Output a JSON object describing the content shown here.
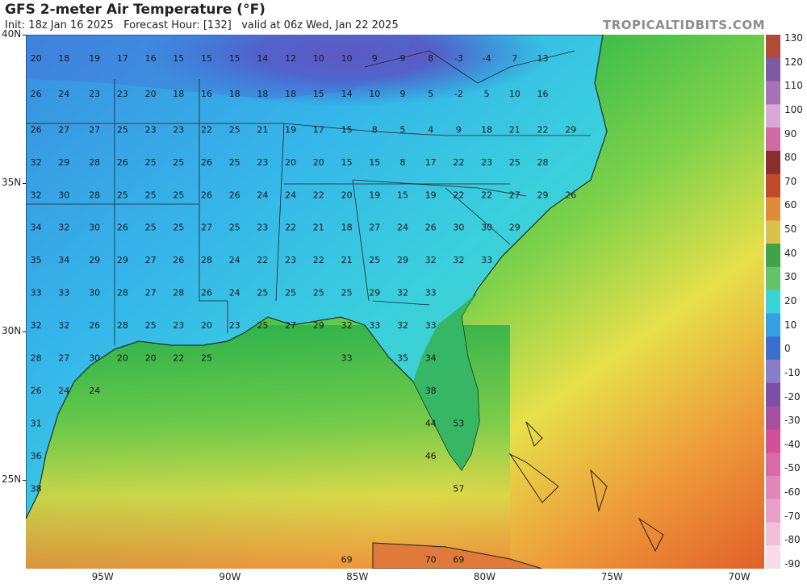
{
  "header": {
    "title": "GFS 2-meter Air Temperature (°F)",
    "subtitle": "Init: 18z Jan 16 2025   Forecast Hour: [132]   valid at 06z Wed, Jan 22 2025",
    "brand": "TROPICALTIDBITS.COM"
  },
  "axes": {
    "lat_labels": [
      {
        "text": "40N",
        "lat": 40
      },
      {
        "text": "35N",
        "lat": 35
      },
      {
        "text": "30N",
        "lat": 30
      },
      {
        "text": "25N",
        "lat": 25
      }
    ],
    "lon_labels": [
      {
        "text": "95W",
        "lon": -95
      },
      {
        "text": "90W",
        "lon": -90
      },
      {
        "text": "85W",
        "lon": -85
      },
      {
        "text": "80W",
        "lon": -80
      },
      {
        "text": "75W",
        "lon": -75
      },
      {
        "text": "70W",
        "lon": -70
      }
    ],
    "extent": {
      "lon_min": -98.0,
      "lon_max": -69.0,
      "lat_min": 22.0,
      "lat_max": 40.0
    }
  },
  "colorbar": {
    "labels": [
      "130",
      "120",
      "110",
      "100",
      "90",
      "80",
      "70",
      "60",
      "50",
      "40",
      "30",
      "20",
      "10",
      "0",
      "-10",
      "-20",
      "-30",
      "-40",
      "-50",
      "-60",
      "-70",
      "-80",
      "-90"
    ],
    "colors": [
      "#b04a3a",
      "#7e5aa3",
      "#a673b8",
      "#d7a8d8",
      "#d16aa2",
      "#8a2d2d",
      "#c04a2a",
      "#e08a3a",
      "#d9c24a",
      "#3fa34a",
      "#65c46a",
      "#3ad3d6",
      "#33a0e6",
      "#3a6fd0",
      "#8a7dc8",
      "#7a4fa8",
      "#a84fa0",
      "#d34f9a",
      "#d86aa8",
      "#e088b8",
      "#e8a0c8",
      "#f0bfd8",
      "#f6dde9"
    ]
  },
  "temperatures": [
    {
      "v": "20",
      "lon": -97.6,
      "lat": 39.1
    },
    {
      "v": "18",
      "lon": -96.5,
      "lat": 39.1
    },
    {
      "v": "19",
      "lon": -95.3,
      "lat": 39.1
    },
    {
      "v": "17",
      "lon": -94.2,
      "lat": 39.1
    },
    {
      "v": "16",
      "lon": -93.1,
      "lat": 39.1
    },
    {
      "v": "15",
      "lon": -92.0,
      "lat": 39.1
    },
    {
      "v": "15",
      "lon": -90.9,
      "lat": 39.1
    },
    {
      "v": "15",
      "lon": -89.8,
      "lat": 39.1
    },
    {
      "v": "14",
      "lon": -88.7,
      "lat": 39.1
    },
    {
      "v": "12",
      "lon": -87.6,
      "lat": 39.1
    },
    {
      "v": "10",
      "lon": -86.5,
      "lat": 39.1
    },
    {
      "v": "10",
      "lon": -85.4,
      "lat": 39.1
    },
    {
      "v": "9",
      "lon": -84.3,
      "lat": 39.1
    },
    {
      "v": "9",
      "lon": -83.2,
      "lat": 39.1
    },
    {
      "v": "8",
      "lon": -82.1,
      "lat": 39.1
    },
    {
      "v": "-3",
      "lon": -81.0,
      "lat": 39.1
    },
    {
      "v": "-4",
      "lon": -79.9,
      "lat": 39.1
    },
    {
      "v": "7",
      "lon": -78.8,
      "lat": 39.1
    },
    {
      "v": "13",
      "lon": -77.7,
      "lat": 39.1
    },
    {
      "v": "26",
      "lon": -97.6,
      "lat": 37.9
    },
    {
      "v": "24",
      "lon": -96.5,
      "lat": 37.9
    },
    {
      "v": "23",
      "lon": -95.3,
      "lat": 37.9
    },
    {
      "v": "23",
      "lon": -94.2,
      "lat": 37.9
    },
    {
      "v": "20",
      "lon": -93.1,
      "lat": 37.9
    },
    {
      "v": "18",
      "lon": -92.0,
      "lat": 37.9
    },
    {
      "v": "16",
      "lon": -90.9,
      "lat": 37.9
    },
    {
      "v": "18",
      "lon": -89.8,
      "lat": 37.9
    },
    {
      "v": "18",
      "lon": -88.7,
      "lat": 37.9
    },
    {
      "v": "18",
      "lon": -87.6,
      "lat": 37.9
    },
    {
      "v": "15",
      "lon": -86.5,
      "lat": 37.9
    },
    {
      "v": "14",
      "lon": -85.4,
      "lat": 37.9
    },
    {
      "v": "10",
      "lon": -84.3,
      "lat": 37.9
    },
    {
      "v": "9",
      "lon": -83.2,
      "lat": 37.9
    },
    {
      "v": "5",
      "lon": -82.1,
      "lat": 37.9
    },
    {
      "v": "-2",
      "lon": -81.0,
      "lat": 37.9
    },
    {
      "v": "5",
      "lon": -79.9,
      "lat": 37.9
    },
    {
      "v": "10",
      "lon": -78.8,
      "lat": 37.9
    },
    {
      "v": "16",
      "lon": -77.7,
      "lat": 37.9
    },
    {
      "v": "26",
      "lon": -97.6,
      "lat": 36.7
    },
    {
      "v": "27",
      "lon": -96.5,
      "lat": 36.7
    },
    {
      "v": "27",
      "lon": -95.3,
      "lat": 36.7
    },
    {
      "v": "25",
      "lon": -94.2,
      "lat": 36.7
    },
    {
      "v": "23",
      "lon": -93.1,
      "lat": 36.7
    },
    {
      "v": "23",
      "lon": -92.0,
      "lat": 36.7
    },
    {
      "v": "22",
      "lon": -90.9,
      "lat": 36.7
    },
    {
      "v": "25",
      "lon": -89.8,
      "lat": 36.7
    },
    {
      "v": "21",
      "lon": -88.7,
      "lat": 36.7
    },
    {
      "v": "19",
      "lon": -87.6,
      "lat": 36.7
    },
    {
      "v": "17",
      "lon": -86.5,
      "lat": 36.7
    },
    {
      "v": "15",
      "lon": -85.4,
      "lat": 36.7
    },
    {
      "v": "8",
      "lon": -84.3,
      "lat": 36.7
    },
    {
      "v": "5",
      "lon": -83.2,
      "lat": 36.7
    },
    {
      "v": "4",
      "lon": -82.1,
      "lat": 36.7
    },
    {
      "v": "9",
      "lon": -81.0,
      "lat": 36.7
    },
    {
      "v": "18",
      "lon": -79.9,
      "lat": 36.7
    },
    {
      "v": "21",
      "lon": -78.8,
      "lat": 36.7
    },
    {
      "v": "22",
      "lon": -77.7,
      "lat": 36.7
    },
    {
      "v": "29",
      "lon": -76.6,
      "lat": 36.7
    },
    {
      "v": "32",
      "lon": -97.6,
      "lat": 35.6
    },
    {
      "v": "29",
      "lon": -96.5,
      "lat": 35.6
    },
    {
      "v": "28",
      "lon": -95.3,
      "lat": 35.6
    },
    {
      "v": "26",
      "lon": -94.2,
      "lat": 35.6
    },
    {
      "v": "25",
      "lon": -93.1,
      "lat": 35.6
    },
    {
      "v": "25",
      "lon": -92.0,
      "lat": 35.6
    },
    {
      "v": "26",
      "lon": -90.9,
      "lat": 35.6
    },
    {
      "v": "25",
      "lon": -89.8,
      "lat": 35.6
    },
    {
      "v": "23",
      "lon": -88.7,
      "lat": 35.6
    },
    {
      "v": "20",
      "lon": -87.6,
      "lat": 35.6
    },
    {
      "v": "20",
      "lon": -86.5,
      "lat": 35.6
    },
    {
      "v": "15",
      "lon": -85.4,
      "lat": 35.6
    },
    {
      "v": "15",
      "lon": -84.3,
      "lat": 35.6
    },
    {
      "v": "8",
      "lon": -83.2,
      "lat": 35.6
    },
    {
      "v": "17",
      "lon": -82.1,
      "lat": 35.6
    },
    {
      "v": "22",
      "lon": -81.0,
      "lat": 35.6
    },
    {
      "v": "23",
      "lon": -79.9,
      "lat": 35.6
    },
    {
      "v": "25",
      "lon": -78.8,
      "lat": 35.6
    },
    {
      "v": "28",
      "lon": -77.7,
      "lat": 35.6
    },
    {
      "v": "32",
      "lon": -97.6,
      "lat": 34.5
    },
    {
      "v": "30",
      "lon": -96.5,
      "lat": 34.5
    },
    {
      "v": "28",
      "lon": -95.3,
      "lat": 34.5
    },
    {
      "v": "25",
      "lon": -94.2,
      "lat": 34.5
    },
    {
      "v": "25",
      "lon": -93.1,
      "lat": 34.5
    },
    {
      "v": "25",
      "lon": -92.0,
      "lat": 34.5
    },
    {
      "v": "26",
      "lon": -90.9,
      "lat": 34.5
    },
    {
      "v": "26",
      "lon": -89.8,
      "lat": 34.5
    },
    {
      "v": "24",
      "lon": -88.7,
      "lat": 34.5
    },
    {
      "v": "24",
      "lon": -87.6,
      "lat": 34.5
    },
    {
      "v": "22",
      "lon": -86.5,
      "lat": 34.5
    },
    {
      "v": "20",
      "lon": -85.4,
      "lat": 34.5
    },
    {
      "v": "19",
      "lon": -84.3,
      "lat": 34.5
    },
    {
      "v": "15",
      "lon": -83.2,
      "lat": 34.5
    },
    {
      "v": "19",
      "lon": -82.1,
      "lat": 34.5
    },
    {
      "v": "22",
      "lon": -81.0,
      "lat": 34.5
    },
    {
      "v": "22",
      "lon": -79.9,
      "lat": 34.5
    },
    {
      "v": "27",
      "lon": -78.8,
      "lat": 34.5
    },
    {
      "v": "29",
      "lon": -77.7,
      "lat": 34.5
    },
    {
      "v": "26",
      "lon": -76.6,
      "lat": 34.5
    },
    {
      "v": "34",
      "lon": -97.6,
      "lat": 33.4
    },
    {
      "v": "32",
      "lon": -96.5,
      "lat": 33.4
    },
    {
      "v": "30",
      "lon": -95.3,
      "lat": 33.4
    },
    {
      "v": "26",
      "lon": -94.2,
      "lat": 33.4
    },
    {
      "v": "25",
      "lon": -93.1,
      "lat": 33.4
    },
    {
      "v": "25",
      "lon": -92.0,
      "lat": 33.4
    },
    {
      "v": "27",
      "lon": -90.9,
      "lat": 33.4
    },
    {
      "v": "25",
      "lon": -89.8,
      "lat": 33.4
    },
    {
      "v": "23",
      "lon": -88.7,
      "lat": 33.4
    },
    {
      "v": "22",
      "lon": -87.6,
      "lat": 33.4
    },
    {
      "v": "21",
      "lon": -86.5,
      "lat": 33.4
    },
    {
      "v": "18",
      "lon": -85.4,
      "lat": 33.4
    },
    {
      "v": "27",
      "lon": -84.3,
      "lat": 33.4
    },
    {
      "v": "24",
      "lon": -83.2,
      "lat": 33.4
    },
    {
      "v": "26",
      "lon": -82.1,
      "lat": 33.4
    },
    {
      "v": "30",
      "lon": -81.0,
      "lat": 33.4
    },
    {
      "v": "30",
      "lon": -79.9,
      "lat": 33.4
    },
    {
      "v": "29",
      "lon": -78.8,
      "lat": 33.4
    },
    {
      "v": "35",
      "lon": -97.6,
      "lat": 32.3
    },
    {
      "v": "34",
      "lon": -96.5,
      "lat": 32.3
    },
    {
      "v": "29",
      "lon": -95.3,
      "lat": 32.3
    },
    {
      "v": "29",
      "lon": -94.2,
      "lat": 32.3
    },
    {
      "v": "27",
      "lon": -93.1,
      "lat": 32.3
    },
    {
      "v": "26",
      "lon": -92.0,
      "lat": 32.3
    },
    {
      "v": "28",
      "lon": -90.9,
      "lat": 32.3
    },
    {
      "v": "24",
      "lon": -89.8,
      "lat": 32.3
    },
    {
      "v": "22",
      "lon": -88.7,
      "lat": 32.3
    },
    {
      "v": "23",
      "lon": -87.6,
      "lat": 32.3
    },
    {
      "v": "22",
      "lon": -86.5,
      "lat": 32.3
    },
    {
      "v": "21",
      "lon": -85.4,
      "lat": 32.3
    },
    {
      "v": "25",
      "lon": -84.3,
      "lat": 32.3
    },
    {
      "v": "29",
      "lon": -83.2,
      "lat": 32.3
    },
    {
      "v": "32",
      "lon": -82.1,
      "lat": 32.3
    },
    {
      "v": "32",
      "lon": -81.0,
      "lat": 32.3
    },
    {
      "v": "33",
      "lon": -79.9,
      "lat": 32.3
    },
    {
      "v": "33",
      "lon": -97.6,
      "lat": 31.2
    },
    {
      "v": "33",
      "lon": -96.5,
      "lat": 31.2
    },
    {
      "v": "30",
      "lon": -95.3,
      "lat": 31.2
    },
    {
      "v": "28",
      "lon": -94.2,
      "lat": 31.2
    },
    {
      "v": "27",
      "lon": -93.1,
      "lat": 31.2
    },
    {
      "v": "28",
      "lon": -92.0,
      "lat": 31.2
    },
    {
      "v": "26",
      "lon": -90.9,
      "lat": 31.2
    },
    {
      "v": "24",
      "lon": -89.8,
      "lat": 31.2
    },
    {
      "v": "25",
      "lon": -88.7,
      "lat": 31.2
    },
    {
      "v": "25",
      "lon": -87.6,
      "lat": 31.2
    },
    {
      "v": "25",
      "lon": -86.5,
      "lat": 31.2
    },
    {
      "v": "25",
      "lon": -85.4,
      "lat": 31.2
    },
    {
      "v": "29",
      "lon": -84.3,
      "lat": 31.2
    },
    {
      "v": "32",
      "lon": -83.2,
      "lat": 31.2
    },
    {
      "v": "33",
      "lon": -82.1,
      "lat": 31.2
    },
    {
      "v": "32",
      "lon": -97.6,
      "lat": 30.1
    },
    {
      "v": "32",
      "lon": -96.5,
      "lat": 30.1
    },
    {
      "v": "26",
      "lon": -95.3,
      "lat": 30.1
    },
    {
      "v": "28",
      "lon": -94.2,
      "lat": 30.1
    },
    {
      "v": "25",
      "lon": -93.1,
      "lat": 30.1
    },
    {
      "v": "23",
      "lon": -92.0,
      "lat": 30.1
    },
    {
      "v": "20",
      "lon": -90.9,
      "lat": 30.1
    },
    {
      "v": "23",
      "lon": -89.8,
      "lat": 30.1
    },
    {
      "v": "25",
      "lon": -88.7,
      "lat": 30.1
    },
    {
      "v": "27",
      "lon": -87.6,
      "lat": 30.1
    },
    {
      "v": "29",
      "lon": -86.5,
      "lat": 30.1
    },
    {
      "v": "32",
      "lon": -85.4,
      "lat": 30.1
    },
    {
      "v": "33",
      "lon": -84.3,
      "lat": 30.1
    },
    {
      "v": "32",
      "lon": -83.2,
      "lat": 30.1
    },
    {
      "v": "33",
      "lon": -82.1,
      "lat": 30.1
    },
    {
      "v": "28",
      "lon": -97.6,
      "lat": 29.0
    },
    {
      "v": "27",
      "lon": -96.5,
      "lat": 29.0
    },
    {
      "v": "30",
      "lon": -95.3,
      "lat": 29.0
    },
    {
      "v": "20",
      "lon": -94.2,
      "lat": 29.0
    },
    {
      "v": "20",
      "lon": -93.1,
      "lat": 29.0
    },
    {
      "v": "22",
      "lon": -92.0,
      "lat": 29.0
    },
    {
      "v": "25",
      "lon": -90.9,
      "lat": 29.0
    },
    {
      "v": "33",
      "lon": -85.4,
      "lat": 29.0
    },
    {
      "v": "35",
      "lon": -83.2,
      "lat": 29.0
    },
    {
      "v": "34",
      "lon": -82.1,
      "lat": 29.0
    },
    {
      "v": "26",
      "lon": -97.6,
      "lat": 27.9
    },
    {
      "v": "24",
      "lon": -96.5,
      "lat": 27.9
    },
    {
      "v": "24",
      "lon": -95.3,
      "lat": 27.9
    },
    {
      "v": "38",
      "lon": -82.1,
      "lat": 27.9
    },
    {
      "v": "31",
      "lon": -97.6,
      "lat": 26.8
    },
    {
      "v": "44",
      "lon": -82.1,
      "lat": 26.8
    },
    {
      "v": "53",
      "lon": -81.0,
      "lat": 26.8
    },
    {
      "v": "36",
      "lon": -97.6,
      "lat": 25.7
    },
    {
      "v": "46",
      "lon": -82.1,
      "lat": 25.7
    },
    {
      "v": "38",
      "lon": -97.6,
      "lat": 24.6
    },
    {
      "v": "57",
      "lon": -81.0,
      "lat": 24.6
    },
    {
      "v": "69",
      "lon": -85.4,
      "lat": 22.2
    },
    {
      "v": "70",
      "lon": -82.1,
      "lat": 22.2
    },
    {
      "v": "69",
      "lon": -81.0,
      "lat": 22.2
    }
  ]
}
